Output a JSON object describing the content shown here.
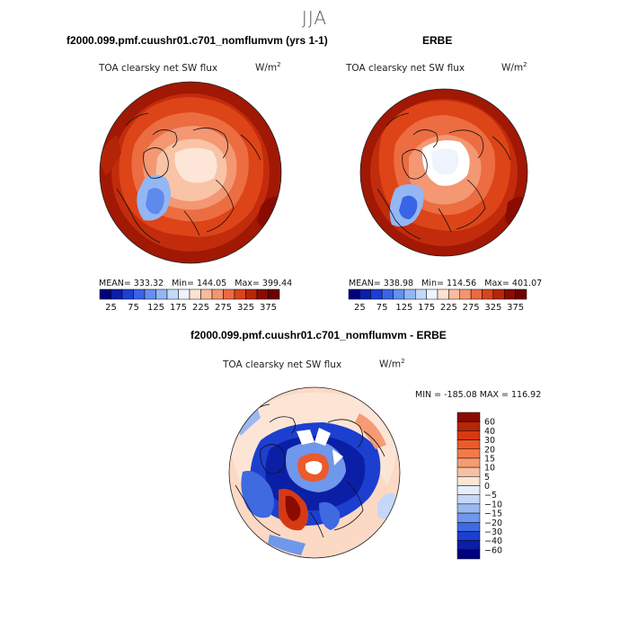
{
  "season": "JJA",
  "panels": [
    {
      "title": "f2000.099.pmf.cuushr01.c701_nomflumvm (yrs 1-1)",
      "variable": "TOA clearsky net SW flux",
      "units_base": "W/m",
      "units_exp": "2",
      "stats": {
        "mean_label": "MEAN=",
        "mean": "333.32",
        "min_label": "Min=",
        "min": "144.05",
        "max_label": "Max=",
        "max": "399.44"
      },
      "colorbar": {
        "levels": [
          25,
          50,
          75,
          100,
          125,
          150,
          175,
          200,
          225,
          250,
          275,
          300,
          325,
          350,
          375
        ],
        "tick_labels": [
          "25",
          "75",
          "125",
          "175",
          "225",
          "275",
          "325",
          "375"
        ],
        "colors": [
          "#00007f",
          "#0a1fa6",
          "#1c3fd0",
          "#3a64e6",
          "#6490ee",
          "#93b6f5",
          "#c4d9fa",
          "#eef3fd",
          "#fde2d2",
          "#f8bc9d",
          "#f39571",
          "#ea6a44",
          "#d9441f",
          "#b82508",
          "#8a0b00",
          "#6e0000"
        ]
      }
    },
    {
      "title": "ERBE",
      "variable": "TOA clearsky net SW flux",
      "units_base": "W/m",
      "units_exp": "2",
      "stats": {
        "mean_label": "MEAN=",
        "mean": "338.98",
        "min_label": "Min=",
        "min": "114.56",
        "max_label": "Max=",
        "max": "401.07"
      },
      "colorbar": {
        "levels": [
          25,
          50,
          75,
          100,
          125,
          150,
          175,
          200,
          225,
          250,
          275,
          300,
          325,
          350,
          375
        ],
        "tick_labels": [
          "25",
          "75",
          "125",
          "175",
          "225",
          "275",
          "325",
          "375"
        ],
        "colors": [
          "#00007f",
          "#0a1fa6",
          "#1c3fd0",
          "#3a64e6",
          "#6490ee",
          "#93b6f5",
          "#c4d9fa",
          "#eef3fd",
          "#fde2d2",
          "#f8bc9d",
          "#f39571",
          "#ea6a44",
          "#d9441f",
          "#b82508",
          "#8a0b00",
          "#6e0000"
        ]
      }
    }
  ],
  "difference": {
    "title": "f2000.099.pmf.cuushr01.c701_nomflumvm - ERBE",
    "variable": "TOA clearsky net SW flux",
    "units_base": "W/m",
    "units_exp": "2",
    "stats_text": "MIN = -185.08  MAX = 116.92",
    "colorbar": {
      "labels": [
        "60",
        "40",
        "30",
        "20",
        "15",
        "10",
        "5",
        "0",
        "-5",
        "-10",
        "-15",
        "-20",
        "-30",
        "-40",
        "-60"
      ],
      "colors": [
        "#8a0b00",
        "#b82508",
        "#d63a14",
        "#eb5a2a",
        "#f27a4a",
        "#f59c74",
        "#f8c0a2",
        "#fde5d6",
        "#e6eefc",
        "#c6d8f7",
        "#9ab9f1",
        "#6f97eb",
        "#3f6ae0",
        "#1c3fd0",
        "#0a1fa6",
        "#00007f"
      ]
    }
  },
  "chart_data": [
    {
      "type": "heatmap",
      "title": "f2000.099.pmf.cuushr01.c701_nomflumvm (yrs 1-1)",
      "variable": "TOA clearsky net SW flux",
      "units": "W/m2",
      "projection": "north polar stereographic",
      "season": "JJA",
      "mean": 333.32,
      "min": 144.05,
      "max": 399.44,
      "contour_levels": [
        25,
        50,
        75,
        100,
        125,
        150,
        175,
        200,
        225,
        250,
        275,
        300,
        325,
        350,
        375
      ]
    },
    {
      "type": "heatmap",
      "title": "ERBE",
      "variable": "TOA clearsky net SW flux",
      "units": "W/m2",
      "projection": "north polar stereographic",
      "season": "JJA",
      "mean": 338.98,
      "min": 114.56,
      "max": 401.07,
      "contour_levels": [
        25,
        50,
        75,
        100,
        125,
        150,
        175,
        200,
        225,
        250,
        275,
        300,
        325,
        350,
        375
      ]
    },
    {
      "type": "heatmap",
      "title": "f2000.099.pmf.cuushr01.c701_nomflumvm - ERBE",
      "variable": "TOA clearsky net SW flux",
      "units": "W/m2",
      "projection": "north polar stereographic",
      "season": "JJA",
      "min": -185.08,
      "max": 116.92,
      "contour_levels": [
        -60,
        -40,
        -30,
        -20,
        -15,
        -10,
        -5,
        0,
        5,
        10,
        15,
        20,
        30,
        40,
        60
      ]
    }
  ]
}
